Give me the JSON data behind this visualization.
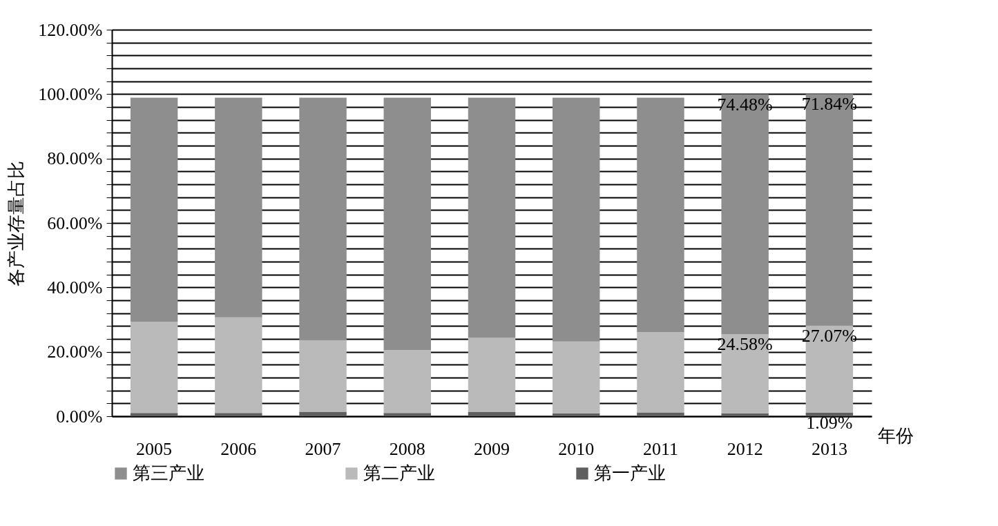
{
  "chart_data": {
    "type": "bar",
    "stacked": true,
    "ylabel": "各产业存量占比",
    "xlabel": "年份",
    "categories": [
      "2005",
      "2006",
      "2007",
      "2008",
      "2009",
      "2010",
      "2011",
      "2012",
      "2013"
    ],
    "series": [
      {
        "name": "第一产业",
        "color": "#5f5f5f",
        "values": [
          1.0,
          1.0,
          1.4,
          1.0,
          1.4,
          0.9,
          1.2,
          0.9,
          1.09
        ],
        "value_labels": [
          null,
          null,
          null,
          null,
          null,
          null,
          null,
          null,
          "1.09%"
        ]
      },
      {
        "name": "第二产业",
        "color": "#bbbabb",
        "values": [
          28.3,
          29.7,
          22.3,
          19.5,
          22.9,
          22.3,
          24.9,
          24.58,
          27.07
        ],
        "value_labels": [
          null,
          null,
          null,
          null,
          null,
          null,
          null,
          "24.58%",
          "27.07%"
        ]
      },
      {
        "name": "第三产业",
        "color": "#8f8e8f",
        "values": [
          69.6,
          68.2,
          75.2,
          78.4,
          74.6,
          75.7,
          72.8,
          74.48,
          71.84
        ],
        "value_labels": [
          null,
          null,
          null,
          null,
          null,
          null,
          null,
          "74.48%",
          "71.84%"
        ]
      }
    ],
    "ylim": [
      0,
      120
    ],
    "yticks": [
      {
        "value": 0,
        "label": "0.00%"
      },
      {
        "value": 4,
        "label": null
      },
      {
        "value": 8,
        "label": null
      },
      {
        "value": 12,
        "label": null
      },
      {
        "value": 16,
        "label": null
      },
      {
        "value": 20,
        "label": "20.00%"
      },
      {
        "value": 24,
        "label": null
      },
      {
        "value": 28,
        "label": null
      },
      {
        "value": 32,
        "label": null
      },
      {
        "value": 36,
        "label": null
      },
      {
        "value": 40,
        "label": "40.00%"
      },
      {
        "value": 44,
        "label": null
      },
      {
        "value": 48,
        "label": null
      },
      {
        "value": 52,
        "label": null
      },
      {
        "value": 56,
        "label": null
      },
      {
        "value": 60,
        "label": "60.00%"
      },
      {
        "value": 64,
        "label": null
      },
      {
        "value": 68,
        "label": null
      },
      {
        "value": 72,
        "label": null
      },
      {
        "value": 76,
        "label": null
      },
      {
        "value": 80,
        "label": "80.00%"
      },
      {
        "value": 84,
        "label": null
      },
      {
        "value": 88,
        "label": null
      },
      {
        "value": 92,
        "label": null
      },
      {
        "value": 96,
        "label": null
      },
      {
        "value": 100,
        "label": "100.00%"
      },
      {
        "value": 104,
        "label": null
      },
      {
        "value": 108,
        "label": null
      },
      {
        "value": 112,
        "label": null
      },
      {
        "value": 116,
        "label": null
      },
      {
        "value": 120,
        "label": "120.00%"
      }
    ],
    "grid": "y",
    "legend": "bottom"
  }
}
